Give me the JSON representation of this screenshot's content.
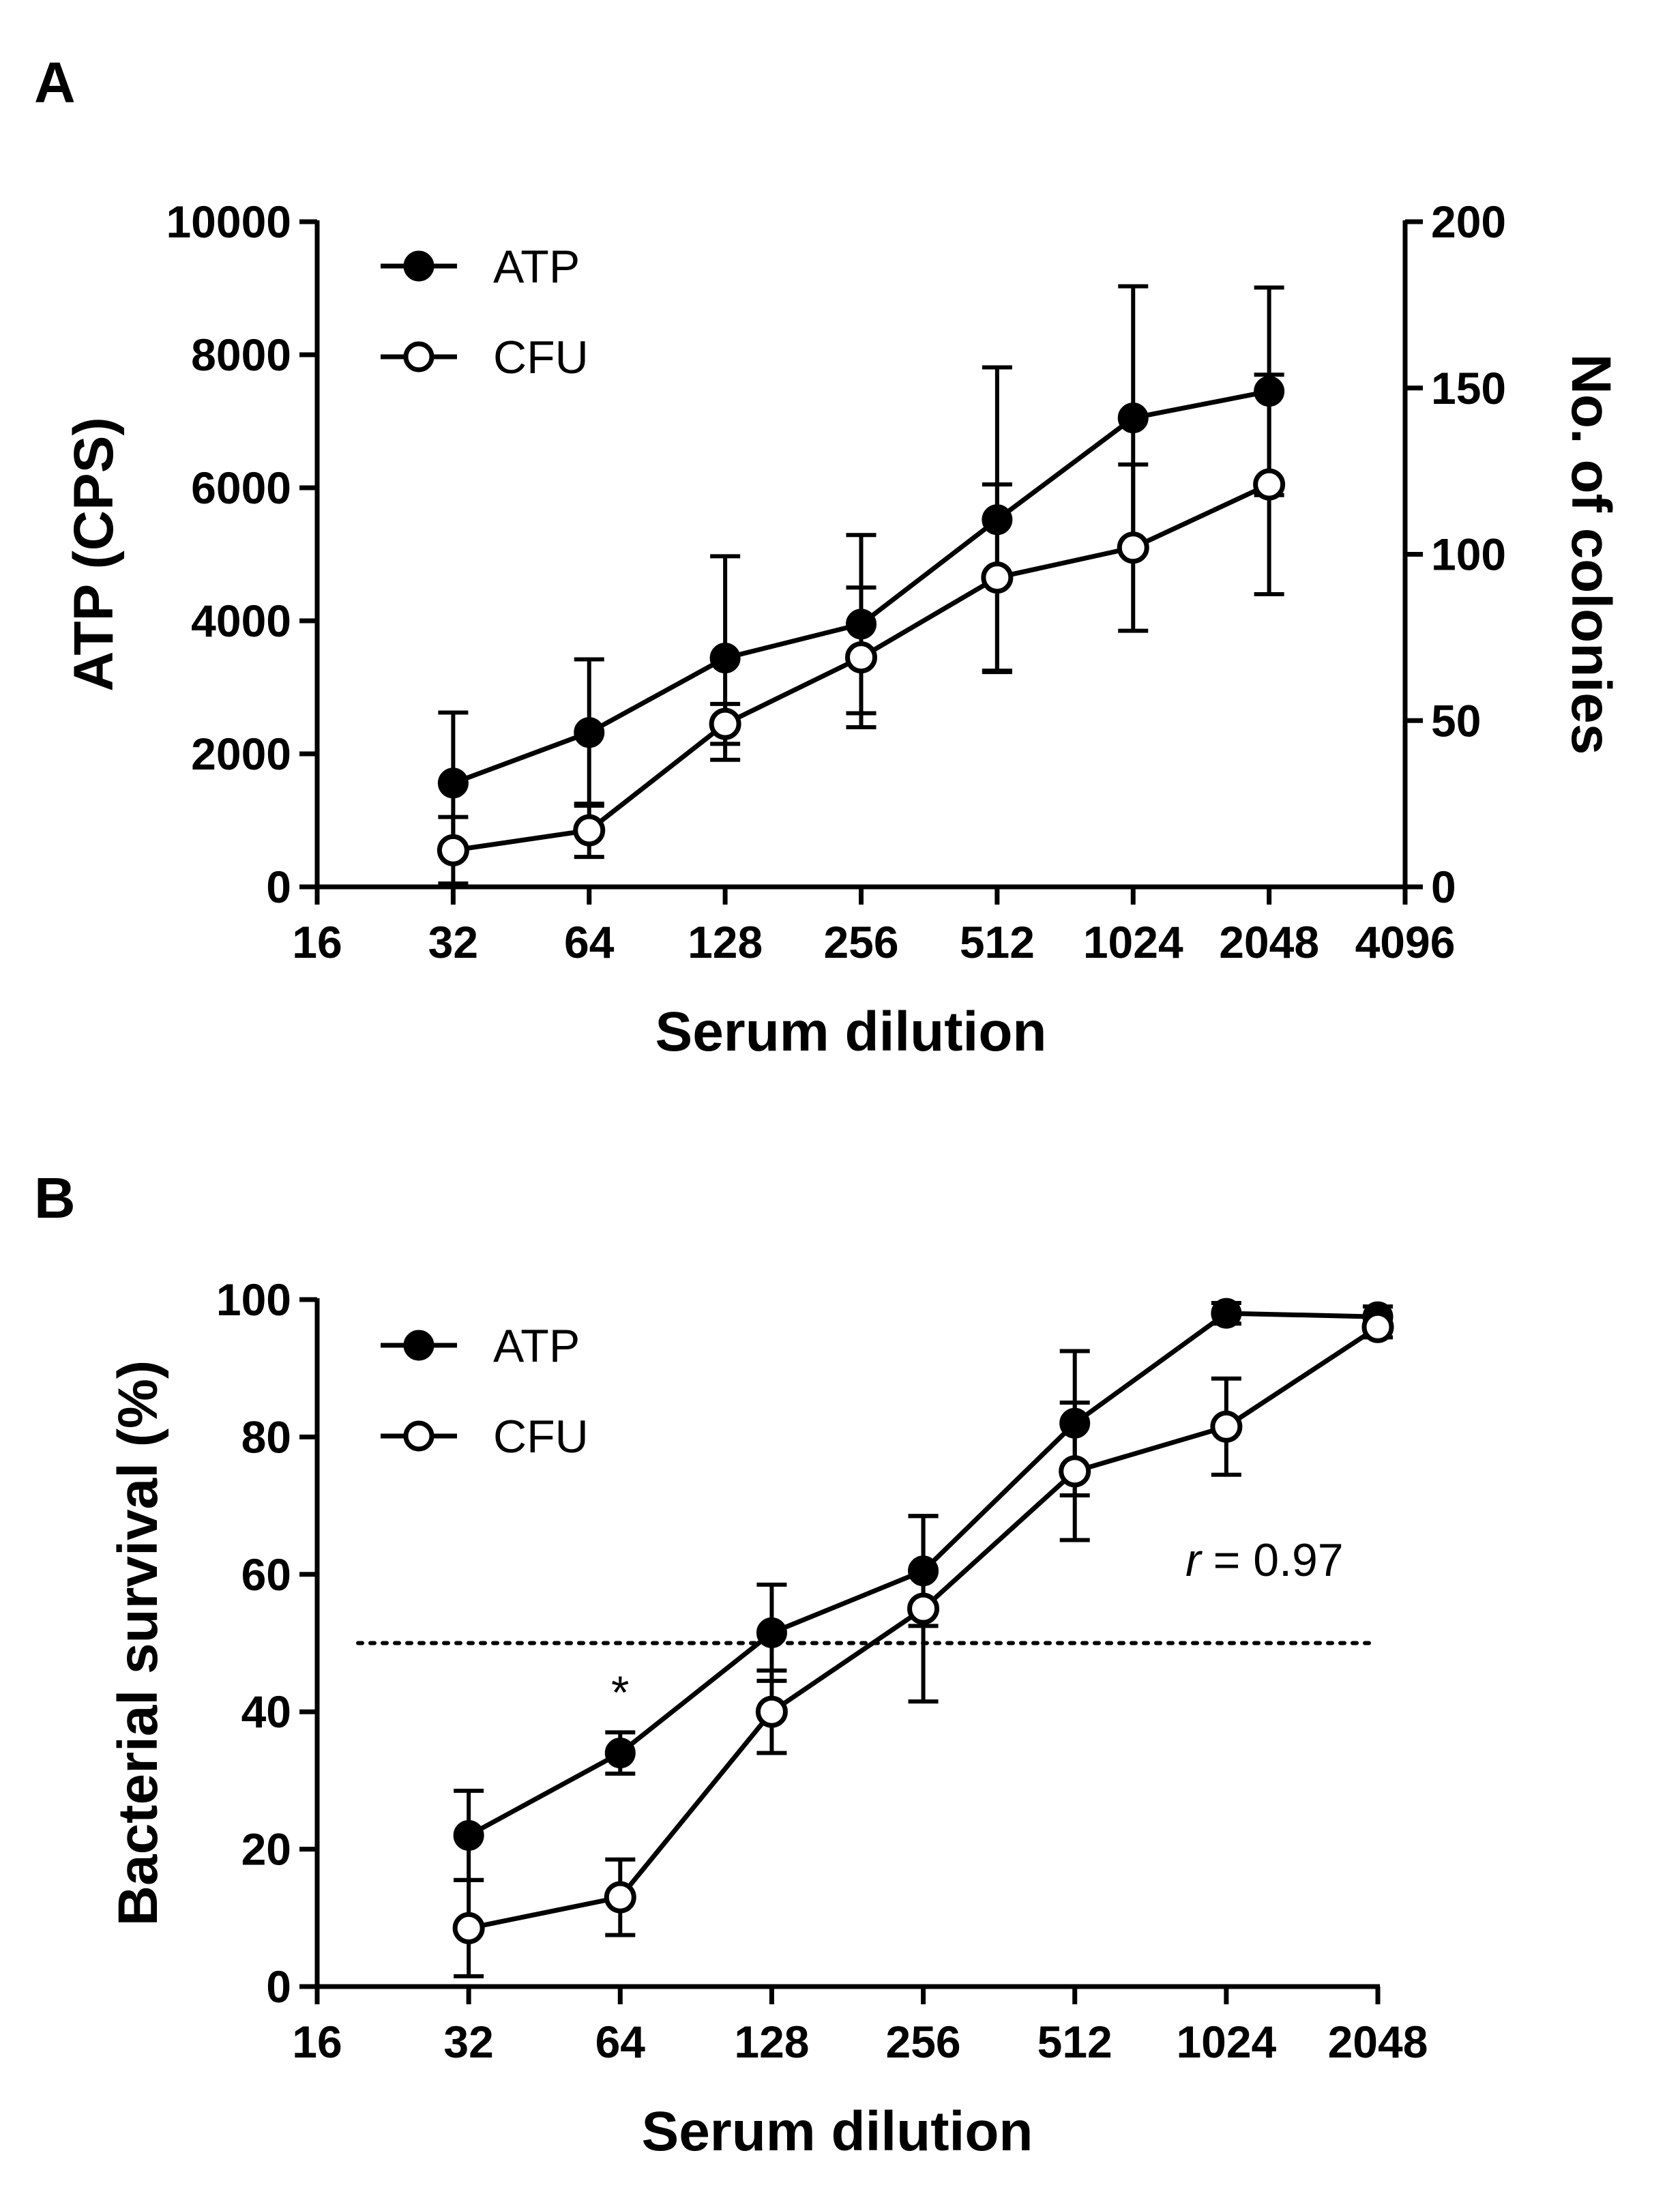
{
  "chart_data": [
    {
      "panel": "A",
      "type": "line",
      "xscale": "log2",
      "xlabel": "Serum dilution",
      "xticks": [
        "16",
        "32",
        "64",
        "128",
        "256",
        "512",
        "1024",
        "2048",
        "4096"
      ],
      "xlim": [
        16,
        4096
      ],
      "ylabel": "ATP (CPS)",
      "ylim": [
        0,
        10000
      ],
      "yticks": [
        "0",
        "2000",
        "4000",
        "6000",
        "8000",
        "10000"
      ],
      "y2label": "No. of colonies",
      "y2lim": [
        0,
        200
      ],
      "y2ticks": [
        "0",
        "50",
        "100",
        "150",
        "200"
      ],
      "legend_position": "top-left",
      "series": [
        {
          "name": "ATP",
          "axis": "left",
          "marker": "filled-circle",
          "x": [
            32,
            64,
            128,
            256,
            512,
            1024,
            2048
          ],
          "y": [
            1560,
            2320,
            3440,
            3950,
            5520,
            7050,
            7450
          ],
          "err": [
            1060,
            1100,
            1530,
            1340,
            2290,
            1980,
            1560
          ]
        },
        {
          "name": "CFU",
          "axis": "right",
          "marker": "open-circle",
          "x": [
            32,
            64,
            128,
            256,
            512,
            1024,
            2048
          ],
          "y": [
            11,
            17,
            49,
            69,
            93,
            102,
            121
          ],
          "err": [
            10,
            8,
            6,
            21,
            28,
            25,
            33
          ]
        }
      ]
    },
    {
      "panel": "B",
      "type": "line",
      "xscale": "log2",
      "xlabel": "Serum dilution",
      "xticks": [
        "16",
        "32",
        "64",
        "128",
        "256",
        "512",
        "1024",
        "2048"
      ],
      "xlim": [
        16,
        2048
      ],
      "ylabel": "Bacterial survival (%)",
      "ylim": [
        0,
        100
      ],
      "yticks": [
        "0",
        "20",
        "40",
        "60",
        "80",
        "100"
      ],
      "legend_position": "top-left",
      "reference_line": {
        "y": 50,
        "style": "dotted"
      },
      "annotations": {
        "r_symbol": "r",
        "r_value": "= 0.97",
        "significance": "*"
      },
      "series": [
        {
          "name": "ATP",
          "marker": "filled-circle",
          "x": [
            32,
            64,
            128,
            256,
            512,
            1024,
            2048
          ],
          "y": [
            22,
            34,
            51.5,
            60.5,
            82,
            98,
            97.5
          ],
          "err": [
            6.5,
            3,
            7,
            8,
            10.5,
            1.5,
            1.5
          ]
        },
        {
          "name": "CFU",
          "marker": "open-circle",
          "x": [
            32,
            64,
            128,
            256,
            512,
            1024,
            2048
          ],
          "y": [
            8.5,
            13,
            40,
            55,
            75,
            81.5,
            96
          ],
          "err": [
            7,
            5.5,
            6,
            13.5,
            10,
            7,
            1.5
          ]
        }
      ]
    }
  ],
  "colors": {
    "ink": "#000000",
    "background": "#ffffff"
  }
}
